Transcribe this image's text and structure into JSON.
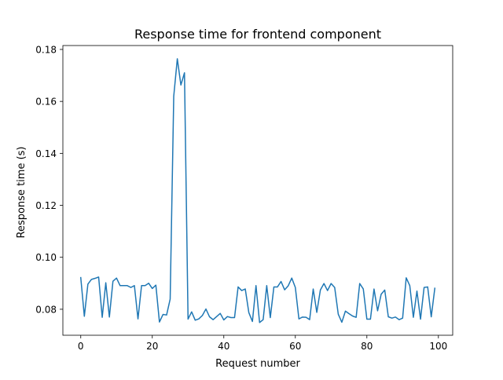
{
  "chart_data": {
    "type": "line",
    "title": "Response time for frontend component",
    "xlabel": "Request number",
    "ylabel": "Response time (s)",
    "xlim": [
      -5,
      104
    ],
    "ylim": [
      0.07,
      0.1815
    ],
    "xticks": [
      0,
      20,
      40,
      60,
      80,
      100
    ],
    "yticks": [
      0.08,
      0.1,
      0.12,
      0.14,
      0.16,
      0.18
    ],
    "xtick_labels": [
      "0",
      "20",
      "40",
      "60",
      "80",
      "100"
    ],
    "ytick_labels": [
      "0.08",
      "0.10",
      "0.12",
      "0.14",
      "0.16",
      "0.18"
    ],
    "grid": false,
    "line_color": "#1f77b4",
    "series": [
      {
        "name": "frontend",
        "x": [
          0,
          1,
          2,
          3,
          4,
          5,
          6,
          7,
          8,
          9,
          10,
          11,
          12,
          13,
          14,
          15,
          16,
          17,
          18,
          19,
          20,
          21,
          22,
          23,
          24,
          25,
          26,
          27,
          28,
          29,
          30,
          31,
          32,
          33,
          34,
          35,
          36,
          37,
          38,
          39,
          40,
          41,
          42,
          43,
          44,
          45,
          46,
          47,
          48,
          49,
          50,
          51,
          52,
          53,
          54,
          55,
          56,
          57,
          58,
          59,
          60,
          61,
          62,
          63,
          64,
          65,
          66,
          67,
          68,
          69,
          70,
          71,
          72,
          73,
          74,
          75,
          76,
          77,
          78,
          79,
          80,
          81,
          82,
          83,
          84,
          85,
          86,
          87,
          88,
          89,
          90,
          91,
          92,
          93,
          94,
          95,
          96,
          97,
          98,
          99
        ],
        "values": [
          0.0922,
          0.0773,
          0.0897,
          0.0915,
          0.0919,
          0.0924,
          0.0769,
          0.0902,
          0.077,
          0.0908,
          0.092,
          0.0891,
          0.0891,
          0.0891,
          0.0884,
          0.0891,
          0.0763,
          0.0891,
          0.0891,
          0.09,
          0.088,
          0.0893,
          0.0751,
          0.078,
          0.0778,
          0.0839,
          0.162,
          0.1764,
          0.1663,
          0.171,
          0.0762,
          0.079,
          0.0758,
          0.0763,
          0.0776,
          0.0801,
          0.0771,
          0.076,
          0.0772,
          0.0784,
          0.0759,
          0.0772,
          0.0768,
          0.0768,
          0.0886,
          0.0872,
          0.0878,
          0.0787,
          0.0753,
          0.0891,
          0.0749,
          0.076,
          0.0891,
          0.0768,
          0.0886,
          0.0886,
          0.0907,
          0.0875,
          0.089,
          0.092,
          0.0884,
          0.0763,
          0.077,
          0.0769,
          0.076,
          0.0878,
          0.0788,
          0.0874,
          0.0899,
          0.0872,
          0.0899,
          0.0884,
          0.0781,
          0.075,
          0.0793,
          0.0783,
          0.0774,
          0.0769,
          0.0899,
          0.0878,
          0.0762,
          0.0762,
          0.0878,
          0.0794,
          0.0858,
          0.0874,
          0.0771,
          0.0766,
          0.077,
          0.076,
          0.0766,
          0.0921,
          0.0891,
          0.0769,
          0.087,
          0.0762,
          0.0884,
          0.0886,
          0.0771,
          0.0881
        ]
      }
    ]
  }
}
